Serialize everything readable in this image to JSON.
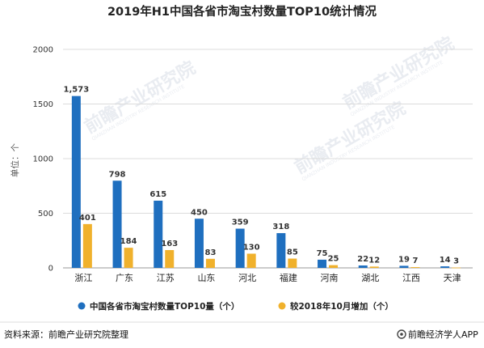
{
  "chart_data": {
    "type": "bar",
    "title": "2019年H1中国各省市淘宝村数量TOP10统计情况",
    "ylabel": "单位：个",
    "ylim": [
      0,
      2000
    ],
    "yticks": [
      "0",
      "500",
      "1000",
      "1500",
      "2000"
    ],
    "categories": [
      "浙江",
      "广东",
      "江苏",
      "山东",
      "河北",
      "福建",
      "河南",
      "湖北",
      "江西",
      "天津"
    ],
    "series": [
      {
        "name": "中国各省市淘宝村数量TOP10量（个）",
        "color": "#1f6fbf",
        "values": [
          1573,
          798,
          615,
          450,
          359,
          318,
          75,
          22,
          19,
          14
        ],
        "labels": [
          "1,573",
          "798",
          "615",
          "450",
          "359",
          "318",
          "75",
          "22",
          "19",
          "14"
        ]
      },
      {
        "name": "较2018年10月增加（个）",
        "color": "#f0b12c",
        "values": [
          401,
          184,
          163,
          83,
          130,
          85,
          25,
          12,
          7,
          3
        ],
        "labels": [
          "401",
          "184",
          "163",
          "83",
          "130",
          "85",
          "25",
          "12",
          "7",
          "3"
        ]
      }
    ],
    "grid": true,
    "legend_position": "bottom"
  },
  "watermark": {
    "text": "前瞻产业研究院",
    "subtext": "QIANZHAN INDUSTRY RESEARCH INSTITUTE"
  },
  "footer": {
    "source": "资料来源：前瞻产业研究院整理",
    "brand": "前瞻经济学人APP"
  }
}
